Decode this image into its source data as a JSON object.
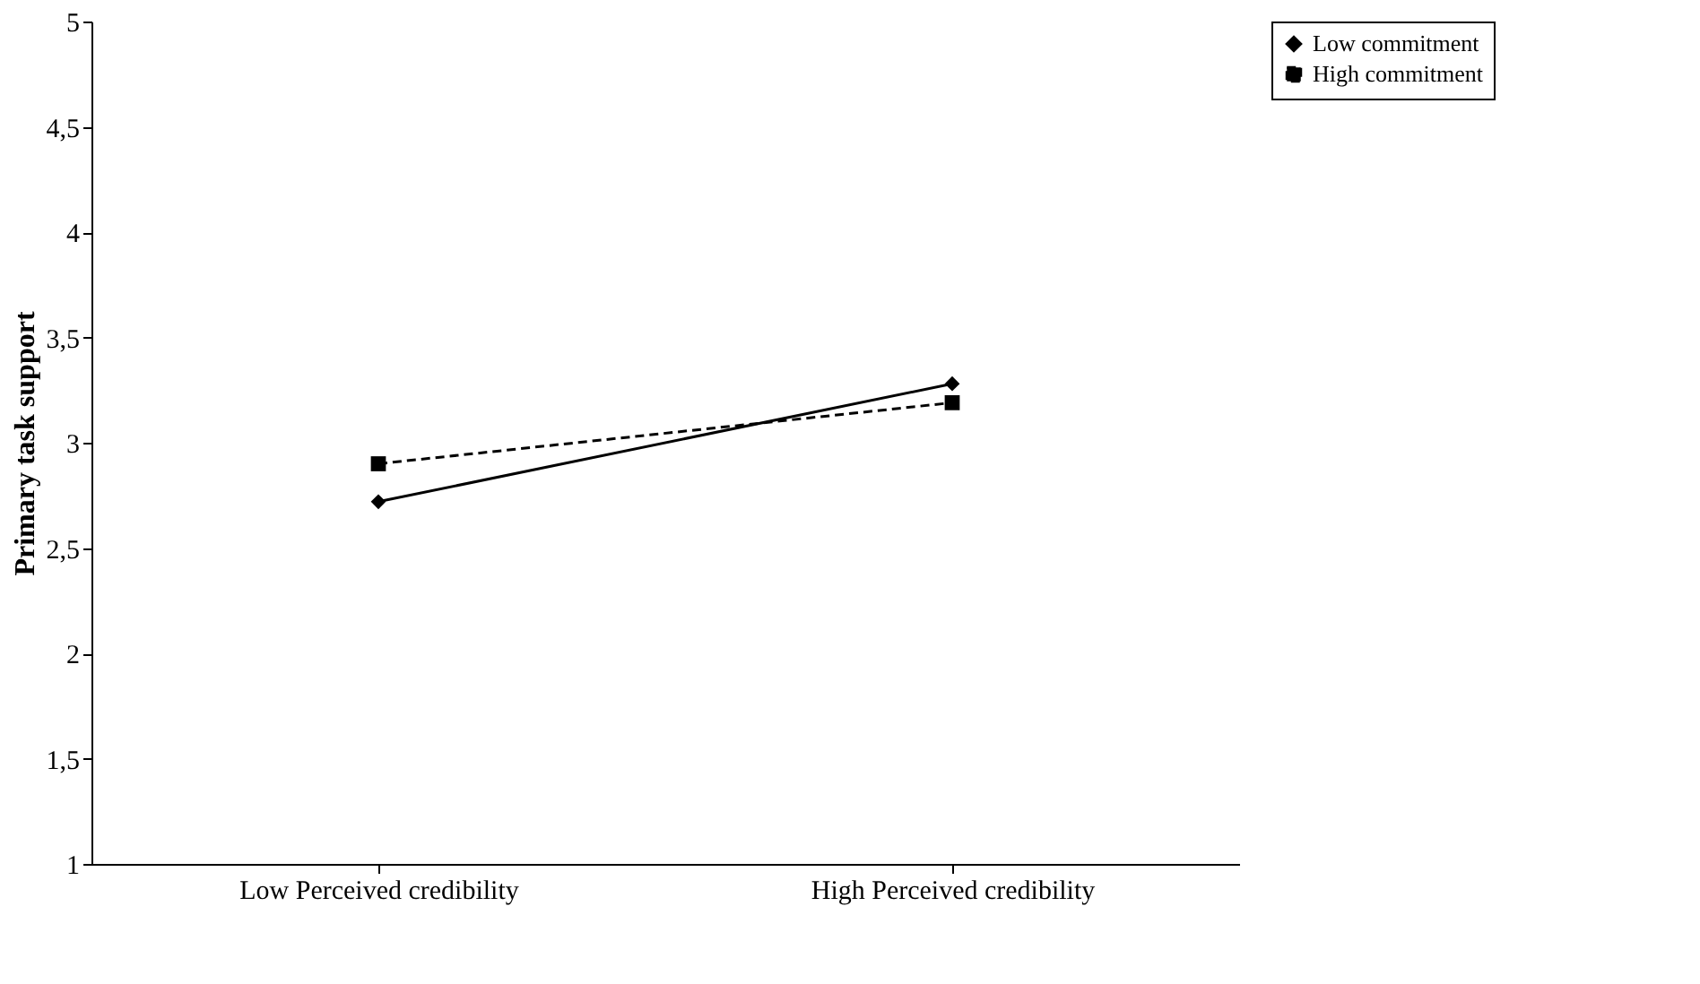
{
  "chart_data": {
    "type": "line",
    "ylabel": "Primary task support",
    "categories": [
      "Low Perceived credibility",
      "High Perceived credibility"
    ],
    "series": [
      {
        "name": "Low commitment",
        "color": "#000000",
        "values": [
          2.72,
          3.28
        ],
        "marker": "diamond",
        "line_style": "solid"
      },
      {
        "name": "High commitment",
        "color": "#000000",
        "values": [
          2.9,
          3.19
        ],
        "marker": "square",
        "line_style": "dashed"
      }
    ],
    "ylim": [
      1,
      5
    ],
    "yticks": [
      1,
      {
        "value": 1.5,
        "label": "1,5"
      },
      2,
      {
        "value": 2.5,
        "label": "2,5"
      },
      3,
      {
        "value": 3.5,
        "label": "3,5"
      },
      4,
      {
        "value": 4.5,
        "label": "4,5"
      },
      5
    ],
    "grid": false,
    "legend": "right"
  }
}
